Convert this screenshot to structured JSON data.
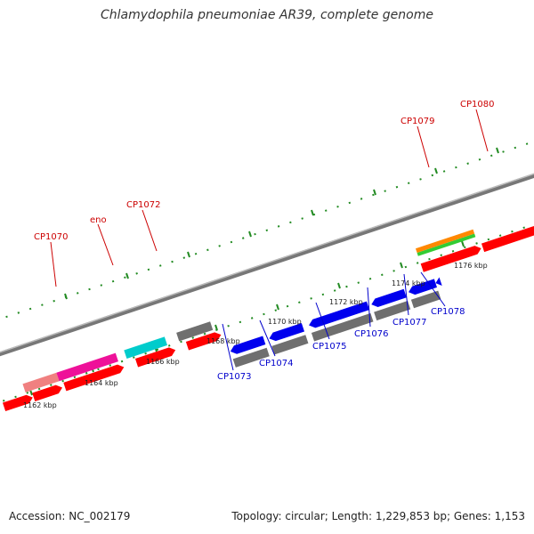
{
  "title": "Chlamydophila pneumoniae AR39, complete genome",
  "footer": {
    "accession": "Accession: NC_002179",
    "topology": "Topology: circular; Length: 1,229,853 bp; Genes: 1,153"
  },
  "colors": {
    "red": "#ff0000",
    "blue": "#0000ee",
    "gray": "#6f6f6f",
    "magenta": "#ee1199",
    "cyan": "#00cccc",
    "salmon": "#f08080",
    "orange": "#ff8800",
    "green": "#33cc33",
    "tick_green": "#228b22",
    "backbone": "#8a8a8a",
    "label_red": "#cc0000",
    "label_blue": "#0000cc"
  },
  "ticks": [
    "1162 kbp",
    "1164 kbp",
    "1166 kbp",
    "1168 kbp",
    "1170 kbp",
    "1172 kbp",
    "1174 kbp",
    "1176 kbp"
  ],
  "labels_top": [
    "CP1070",
    "eno",
    "CP1072",
    "CP1079",
    "CP1080"
  ],
  "labels_bottom": [
    "CP1073",
    "CP1074",
    "CP1075",
    "CP1076",
    "CP1077",
    "CP1078"
  ]
}
